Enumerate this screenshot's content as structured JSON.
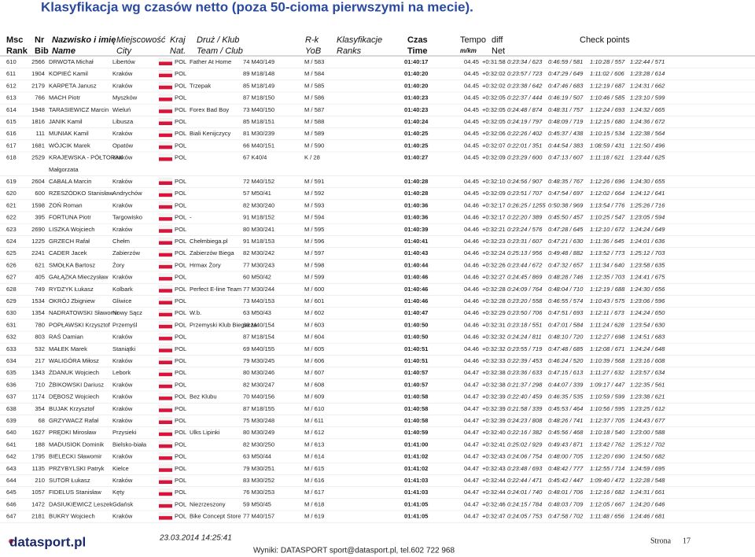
{
  "header": {
    "title": "Klasyfikacja wg czasów netto (poza 50-cioma pierwszymi na mecie).",
    "columns": [
      [
        "Msc",
        "Rank"
      ],
      [
        "Nr",
        "Bib"
      ],
      [
        "Nazwisko i imię",
        "Name"
      ],
      [
        "Miejscowość",
        "City"
      ],
      [
        "Kraj",
        "Nat."
      ],
      [
        "Druż / Klub",
        "Team / Club"
      ],
      [
        "R-k",
        "YoB"
      ],
      [
        "Klasyfikacje",
        "Ranks"
      ],
      [
        "Czas",
        "Time"
      ],
      [
        "Tempo",
        "m/km"
      ],
      [
        "diff",
        "Net"
      ]
    ],
    "checkpoints": "Check points"
  },
  "table": {
    "rows": [
      {
        "rank": "610",
        "bib": "2566",
        "name": "DRWOTA Michał",
        "city": "Libertów",
        "nat": "POL",
        "club": "Father At Home",
        "cat": "74 M40/149",
        "ranks": "M / 583",
        "time": "01:40:17",
        "tempo": "04.45",
        "diff": "+0:31:58",
        "cp": [
          "0:23:34 / 623",
          "0:46:59 / 581",
          "1:10:28 / 557",
          "1:22:44 / 571"
        ]
      },
      {
        "rank": "611",
        "bib": "1904",
        "name": "KOPIEĆ Kamil",
        "city": "Kraków",
        "nat": "POL",
        "cat": "89 M18/148",
        "ranks": "M / 584",
        "time": "01:40:20",
        "tempo": "04.45",
        "diff": "+0:32:02",
        "cp": [
          "0:23:57 / 723",
          "0:47:29 / 649",
          "1:11:02 / 606",
          "1:23:28 / 614"
        ]
      },
      {
        "rank": "612",
        "bib": "2179",
        "name": "KARPETA Janusz",
        "city": "Kraków",
        "nat": "POL",
        "club": "Trzepak",
        "cat": "85 M18/149",
        "ranks": "M / 585",
        "time": "01:40:20",
        "tempo": "04.45",
        "diff": "+0:32:02",
        "cp": [
          "0:23:38 / 642",
          "0:47:46 / 683",
          "1:12:19 / 687",
          "1:24:31 / 662"
        ]
      },
      {
        "rank": "613",
        "bib": "766",
        "name": "MACH Piotr",
        "city": "Myszków",
        "nat": "POL",
        "cat": "87 M18/150",
        "ranks": "M / 586",
        "time": "01:40:23",
        "tempo": "04.45",
        "diff": "+0:32:05",
        "cp": [
          "0:22:37 / 444",
          "0:46:19 / 507",
          "1:10:46 / 585",
          "1:23:10 / 599"
        ]
      },
      {
        "rank": "614",
        "bib": "1948",
        "name": "TARASIEWICZ Marcin",
        "city": "Wieluń",
        "nat": "POL",
        "club": "Forex Bad Boy",
        "cat": "73 M40/150",
        "ranks": "M / 587",
        "time": "01:40:23",
        "tempo": "04.45",
        "diff": "+0:32:05",
        "cp": [
          "0:24:48 / 874",
          "0:48:31 / 757",
          "1:12:24 / 693",
          "1:24:32 / 665"
        ]
      },
      {
        "rank": "615",
        "bib": "1816",
        "name": "JANIK Kamil",
        "city": "Libusza",
        "nat": "POL",
        "cat": "85 M18/151",
        "ranks": "M / 588",
        "time": "01:40:24",
        "tempo": "04.45",
        "diff": "+0:32:05",
        "cp": [
          "0:24:19 / 797",
          "0:48:09 / 719",
          "1:12:15 / 680",
          "1:24:36 / 672"
        ]
      },
      {
        "rank": "616",
        "bib": "111",
        "name": "MUNIAK Kamil",
        "city": "Kraków",
        "nat": "POL",
        "club": "Biali Kenijczycy",
        "cat": "81 M30/239",
        "ranks": "M / 589",
        "time": "01:40:25",
        "tempo": "04.45",
        "diff": "+0:32:06",
        "cp": [
          "0:22:26 / 402",
          "0:45:37 / 438",
          "1:10:15 / 534",
          "1:22:38 / 564"
        ]
      },
      {
        "rank": "617",
        "bib": "1681",
        "name": "WÓJCIK Marek",
        "city": "Opatów",
        "nat": "POL",
        "cat": "66 M40/151",
        "ranks": "M / 590",
        "time": "01:40:25",
        "tempo": "04.45",
        "diff": "+0:32:07",
        "cp": [
          "0:22:01 / 351",
          "0:44:54 / 383",
          "1:08:59 / 431",
          "1:21:50 / 496"
        ]
      },
      {
        "rank": "618",
        "bib": "2529",
        "name": "KRAJEWSKA - PÓŁTORAK",
        "name2": "Małgorzata",
        "city": "Kraków",
        "nat": "POL",
        "cat": "67 K40/4",
        "ranks": "K / 28",
        "time": "01:40:27",
        "tempo": "04.45",
        "diff": "+0:32:09",
        "cp": [
          "0:23:29 / 600",
          "0:47:13 / 607",
          "1:11:18 / 621",
          "1:23:44 / 625"
        ]
      },
      {
        "rank": "619",
        "bib": "2604",
        "name": "CABALA Marcin",
        "city": "Kraków",
        "nat": "POL",
        "cat": "72 M40/152",
        "ranks": "M / 591",
        "time": "01:40:28",
        "tempo": "04.45",
        "diff": "+0:32:10",
        "cp": [
          "0:24:56 / 907",
          "0:48:35 / 767",
          "1:12:26 / 696",
          "1:24:30 / 655"
        ]
      },
      {
        "rank": "620",
        "bib": "600",
        "name": "RZESZÓDKO Stanisław",
        "city": "Andrychów",
        "nat": "POL",
        "cat": "57 M50/41",
        "ranks": "M / 592",
        "time": "01:40:28",
        "tempo": "04.45",
        "diff": "+0:32:09",
        "cp": [
          "0:23:51 / 707",
          "0:47:54 / 697",
          "1:12:02 / 664",
          "1:24:12 / 641"
        ]
      },
      {
        "rank": "621",
        "bib": "1598",
        "name": "ZOŃ Roman",
        "city": "Kraków",
        "nat": "POL",
        "cat": "82 M30/240",
        "ranks": "M / 593",
        "time": "01:40:36",
        "tempo": "04.46",
        "diff": "+0:32:17",
        "cp": [
          "0:26:25 / 1255",
          "0:50:38 / 969",
          "1:13:54 / 776",
          "1:25:26 / 716"
        ]
      },
      {
        "rank": "622",
        "bib": "395",
        "name": "FORTUNA Piotr",
        "city": "Targowisko",
        "nat": "POL",
        "club": "-",
        "cat": "91 M18/152",
        "ranks": "M / 594",
        "time": "01:40:36",
        "tempo": "04.46",
        "diff": "+0:32:17",
        "cp": [
          "0:22:20 / 389",
          "0:45:50 / 457",
          "1:10:25 / 547",
          "1:23:05 / 594"
        ]
      },
      {
        "rank": "623",
        "bib": "2690",
        "name": "LISZKA Wojciech",
        "city": "Kraków",
        "nat": "POL",
        "cat": "80 M30/241",
        "ranks": "M / 595",
        "time": "01:40:39",
        "tempo": "04.46",
        "diff": "+0:32:21",
        "cp": [
          "0:23:24 / 576",
          "0:47:28 / 645",
          "1:12:10 / 672",
          "1:24:24 / 649"
        ]
      },
      {
        "rank": "624",
        "bib": "1225",
        "name": "GRZECH Rafał",
        "city": "Chełm",
        "nat": "POL",
        "club": "Chełmbiega.pl",
        "cat": "91 M18/153",
        "ranks": "M / 596",
        "time": "01:40:41",
        "tempo": "04.46",
        "diff": "+0:32:23",
        "cp": [
          "0:23:31 / 607",
          "0:47:21 / 630",
          "1:11:36 / 645",
          "1:24:01 / 636"
        ]
      },
      {
        "rank": "625",
        "bib": "2241",
        "name": "CADER Jacek",
        "city": "Zabierzów",
        "nat": "POL",
        "club": "Zabierzów Biega",
        "cat": "82 M30/242",
        "ranks": "M / 597",
        "time": "01:40:43",
        "tempo": "04.46",
        "diff": "+0:32:24",
        "cp": [
          "0:25:13 / 956",
          "0:49:48 / 882",
          "1:13:52 / 773",
          "1:25:12 / 703"
        ]
      },
      {
        "rank": "626",
        "bib": "621",
        "name": "SMOŁKA Bartosz",
        "city": "Żory",
        "nat": "POL",
        "club": "Hrmax Żory",
        "cat": "77 M30/243",
        "ranks": "M / 598",
        "time": "01:40:44",
        "tempo": "04.46",
        "diff": "+0:32:26",
        "cp": [
          "0:23:44 / 672",
          "0:47:32 / 657",
          "1:11:34 / 640",
          "1:23:58 / 635"
        ]
      },
      {
        "rank": "627",
        "bib": "405",
        "name": "GAŁĄZKA Mieczysław",
        "city": "Kraków",
        "nat": "POL",
        "cat": "60 M50/42",
        "ranks": "M / 599",
        "time": "01:40:46",
        "tempo": "04.46",
        "diff": "+0:32:27",
        "cp": [
          "0:24:45 / 869",
          "0:48:28 / 746",
          "1:12:35 / 703",
          "1:24:41 / 675"
        ]
      },
      {
        "rank": "628",
        "bib": "749",
        "name": "RYDZYK Łukasz",
        "city": "Kolbark",
        "nat": "POL",
        "club": "Perfect E-line Team",
        "cat": "77 M30/244",
        "ranks": "M / 600",
        "time": "01:40:46",
        "tempo": "04.46",
        "diff": "+0:32:28",
        "cp": [
          "0:24:09 / 764",
          "0:48:04 / 710",
          "1:12:19 / 688",
          "1:24:30 / 656"
        ]
      },
      {
        "rank": "629",
        "bib": "1534",
        "name": "OKRÓJ Zbigniew",
        "city": "Gliwice",
        "nat": "POL",
        "cat": "73 M40/153",
        "ranks": "M / 601",
        "time": "01:40:46",
        "tempo": "04.46",
        "diff": "+0:32:28",
        "cp": [
          "0:23:20 / 558",
          "0:46:55 / 574",
          "1:10:43 / 575",
          "1:23:06 / 596"
        ]
      },
      {
        "rank": "630",
        "bib": "1354",
        "name": "NADRATOWSKI Sławomir",
        "city": "Nowy Sącz",
        "nat": "POL",
        "club": "W.b.",
        "cat": "63 M50/43",
        "ranks": "M / 602",
        "time": "01:40:47",
        "tempo": "04.46",
        "diff": "+0:32:29",
        "cp": [
          "0:23:50 / 706",
          "0:47:51 / 693",
          "1:12:11 / 673",
          "1:24:24 / 650"
        ]
      },
      {
        "rank": "631",
        "bib": "780",
        "name": "POPŁAWSKI Krzysztof",
        "city": "Przemyśl",
        "nat": "POL",
        "club": "Przemyski Klub Biegacza",
        "cat": "69 M40/154",
        "ranks": "M / 603",
        "time": "01:40:50",
        "tempo": "04.46",
        "diff": "+0:32:31",
        "cp": [
          "0:23:18 / 551",
          "0:47:01 / 584",
          "1:11:24 / 628",
          "1:23:54 / 630"
        ]
      },
      {
        "rank": "632",
        "bib": "803",
        "name": "RAŚ Damian",
        "city": "Kraków",
        "nat": "POL",
        "cat": "87 M18/154",
        "ranks": "M / 604",
        "time": "01:40:50",
        "tempo": "04.46",
        "diff": "+0:32:32",
        "cp": [
          "0:24:24 / 811",
          "0:48:10 / 720",
          "1:12:27 / 698",
          "1:24:51 / 683"
        ]
      },
      {
        "rank": "633",
        "bib": "532",
        "name": "MAŁEK Marek",
        "city": "Staniątki",
        "nat": "POL",
        "cat": "69 M40/155",
        "ranks": "M / 605",
        "time": "01:40:51",
        "tempo": "04.46",
        "diff": "+0:32:32",
        "cp": [
          "0:23:55 / 719",
          "0:47:48 / 685",
          "1:12:08 / 671",
          "1:24:24 / 648"
        ]
      },
      {
        "rank": "634",
        "bib": "217",
        "name": "WALIGÓRA Miłosz",
        "city": "Kraków",
        "nat": "POL",
        "cat": "79 M30/245",
        "ranks": "M / 606",
        "time": "01:40:51",
        "tempo": "04.46",
        "diff": "+0:32:33",
        "cp": [
          "0:22:39 / 453",
          "0:46:24 / 520",
          "1:10:39 / 568",
          "1:23:16 / 608"
        ]
      },
      {
        "rank": "635",
        "bib": "1343",
        "name": "ŻDANUK Wojciech",
        "city": "Lebork",
        "nat": "POL",
        "cat": "80 M30/246",
        "ranks": "M / 607",
        "time": "01:40:57",
        "tempo": "04.47",
        "diff": "+0:32:38",
        "cp": [
          "0:23:36 / 633",
          "0:47:15 / 613",
          "1:11:27 / 632",
          "1:23:57 / 634"
        ]
      },
      {
        "rank": "636",
        "bib": "710",
        "name": "ŻBIKOWSKI Dariusz",
        "city": "Kraków",
        "nat": "POL",
        "cat": "82 M30/247",
        "ranks": "M / 608",
        "time": "01:40:57",
        "tempo": "04.47",
        "diff": "+0:32:38",
        "cp": [
          "0:21:37 / 298",
          "0:44:07 / 339",
          "1:09:17 / 447",
          "1:22:35 / 561"
        ]
      },
      {
        "rank": "637",
        "bib": "1174",
        "name": "DĘBOSZ Wojciech",
        "city": "Kraków",
        "nat": "POL",
        "club": "Bez Klubu",
        "cat": "70 M40/156",
        "ranks": "M / 609",
        "time": "01:40:58",
        "tempo": "04.47",
        "diff": "+0:32:39",
        "cp": [
          "0:22:40 / 459",
          "0:46:35 / 535",
          "1:10:59 / 599",
          "1:23:38 / 621"
        ]
      },
      {
        "rank": "638",
        "bib": "354",
        "name": "BUJAK Krzysztof",
        "city": "Kraków",
        "nat": "POL",
        "cat": "87 M18/155",
        "ranks": "M / 610",
        "time": "01:40:58",
        "tempo": "04.47",
        "diff": "+0:32:39",
        "cp": [
          "0:21:58 / 339",
          "0:45:53 / 464",
          "1:10:56 / 595",
          "1:23:25 / 612"
        ]
      },
      {
        "rank": "639",
        "bib": "68",
        "name": "GRZYWACZ Rafał",
        "city": "Kraków",
        "nat": "POL",
        "cat": "75 M30/248",
        "ranks": "M / 611",
        "time": "01:40:58",
        "tempo": "04.47",
        "diff": "+0:32:39",
        "cp": [
          "0:24:23 / 808",
          "0:48:26 / 741",
          "1:12:37 / 705",
          "1:24:43 / 677"
        ]
      },
      {
        "rank": "640",
        "bib": "1627",
        "name": "PRĘDKI Mirosław",
        "city": "Przysieki",
        "nat": "POL",
        "club": "Ulks Lipinki",
        "cat": "80 M30/249",
        "ranks": "M / 612",
        "time": "01:40:59",
        "tempo": "04.47",
        "diff": "+0:32:40",
        "cp": [
          "0:22:16 / 382",
          "0:45:56 / 468",
          "1:10:18 / 540",
          "1:23:00 / 588"
        ]
      },
      {
        "rank": "641",
        "bib": "188",
        "name": "MADUSIOK Dominik",
        "city": "Bielsko-biała",
        "nat": "POL",
        "cat": "82 M30/250",
        "ranks": "M / 613",
        "time": "01:41:00",
        "tempo": "04.47",
        "diff": "+0:32:41",
        "cp": [
          "0:25:02 / 929",
          "0:49:43 / 871",
          "1:13:42 / 762",
          "1:25:12 / 702"
        ]
      },
      {
        "rank": "642",
        "bib": "1795",
        "name": "BIELECKI Sławomir",
        "city": "Kraków",
        "nat": "POL",
        "cat": "63 M50/44",
        "ranks": "M / 614",
        "time": "01:41:02",
        "tempo": "04.47",
        "diff": "+0:32:43",
        "cp": [
          "0:24:06 / 754",
          "0:48:00 / 705",
          "1:12:20 / 690",
          "1:24:50 / 682"
        ]
      },
      {
        "rank": "643",
        "bib": "1135",
        "name": "PRZYBYLSKI Patryk",
        "city": "Kielce",
        "nat": "POL",
        "cat": "79 M30/251",
        "ranks": "M / 615",
        "time": "01:41:02",
        "tempo": "04.47",
        "diff": "+0:32:43",
        "cp": [
          "0:23:48 / 693",
          "0:48:42 / 777",
          "1:12:55 / 714",
          "1:24:59 / 695"
        ]
      },
      {
        "rank": "644",
        "bib": "210",
        "name": "SUTOR Łukasz",
        "city": "Kraków",
        "nat": "POL",
        "cat": "83 M30/252",
        "ranks": "M / 616",
        "time": "01:41:03",
        "tempo": "04.47",
        "diff": "+0:32:44",
        "cp": [
          "0:22:44 / 471",
          "0:45:42 / 447",
          "1:09:40 / 472",
          "1:22:28 / 548"
        ]
      },
      {
        "rank": "645",
        "bib": "1057",
        "name": "FIDELUS Stanisław",
        "city": "Kęty",
        "nat": "POL",
        "cat": "76 M30/253",
        "ranks": "M / 617",
        "time": "01:41:03",
        "tempo": "04.47",
        "diff": "+0:32:44",
        "cp": [
          "0:24:01 / 740",
          "0:48:01 / 706",
          "1:12:16 / 682",
          "1:24:31 / 661"
        ]
      },
      {
        "rank": "646",
        "bib": "1472",
        "name": "DASIUKIEWICZ Leszek",
        "city": "Gdańsk",
        "nat": "POL",
        "club": "Niezrzeszony",
        "cat": "59 M50/45",
        "ranks": "M / 618",
        "time": "01:41:05",
        "tempo": "04.47",
        "diff": "+0:32:46",
        "cp": [
          "0:24:15 / 784",
          "0:48:03 / 709",
          "1:12:05 / 667",
          "1:24:20 / 646"
        ]
      },
      {
        "rank": "647",
        "bib": "2181",
        "name": "BUKRY Wojciech",
        "city": "Kraków",
        "nat": "POL",
        "club": "Bike Concept Store",
        "cat": "77 M40/157",
        "ranks": "M / 619",
        "time": "01:41:05",
        "tempo": "04.47",
        "diff": "+0:32:47",
        "cp": [
          "0:24:05 / 753",
          "0:47:58 / 702",
          "1:11:48 / 656",
          "1:24:46 / 681"
        ]
      }
    ]
  },
  "footer": {
    "logo": "datasport.pl",
    "date": "23.03.2014 14:25:41",
    "contact": "Wyniki: DATASPORT sport@datasport.pl, tel.602 722 968",
    "page_label": "Strona",
    "page": "17"
  }
}
